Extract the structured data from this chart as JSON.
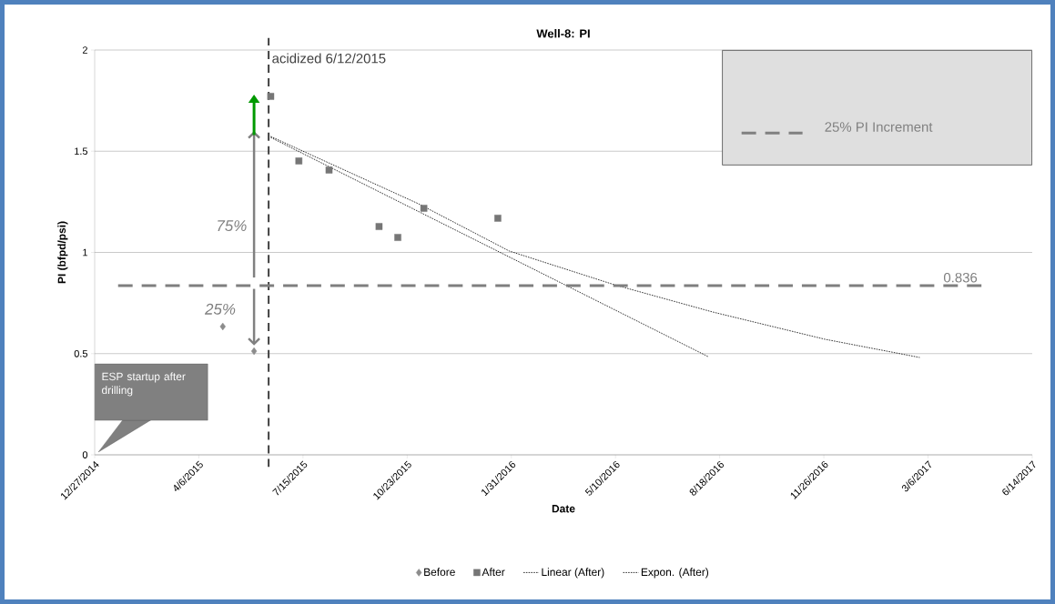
{
  "chart_data": {
    "type": "scatter",
    "title": "Well-8: PI",
    "xlabel": "Date",
    "ylabel": "PI (bfpd/psi)",
    "xlim": [
      "2014-12-27",
      "2017-06-14"
    ],
    "xticks": [
      {
        "value": "2014-12-27",
        "label": "12/27/2014"
      },
      {
        "value": "2015-04-06",
        "label": "4/6/2015"
      },
      {
        "value": "2015-07-15",
        "label": "7/15/2015"
      },
      {
        "value": "2015-10-23",
        "label": "10/23/2015"
      },
      {
        "value": "2016-01-31",
        "label": "1/31/2016"
      },
      {
        "value": "2016-05-10",
        "label": "5/10/2016"
      },
      {
        "value": "2016-08-18",
        "label": "8/18/2016"
      },
      {
        "value": "2016-11-26",
        "label": "11/26/2016"
      },
      {
        "value": "2017-03-06",
        "label": "3/6/2017"
      },
      {
        "value": "2017-06-14",
        "label": "6/14/2017"
      }
    ],
    "ylim": [
      0,
      2
    ],
    "yticks": [
      0,
      0.5,
      1,
      1.5,
      2
    ],
    "grid": "y",
    "legend": "bottom",
    "series": [
      {
        "name": "Before",
        "marker": "diamond",
        "color": "#8c8c8c",
        "x": [
          "2015-04-29",
          "2015-05-29"
        ],
        "values": [
          0.634,
          0.512
        ]
      },
      {
        "name": "After",
        "marker": "square",
        "color": "#767676",
        "x": [
          "2015-06-14",
          "2015-07-11",
          "2015-08-09",
          "2015-09-26",
          "2015-10-14",
          "2015-11-08",
          "2016-01-18"
        ],
        "values": [
          1.771,
          1.452,
          1.407,
          1.128,
          1.074,
          1.218,
          1.169
        ]
      },
      {
        "name": "Linear (After)",
        "type": "line",
        "line_style": "dotted",
        "color": "#000000",
        "x": [
          "2015-06-14",
          "2016-08-07"
        ],
        "values": [
          1.568,
          0.485
        ]
      },
      {
        "name": "Expon. (After)",
        "type": "line",
        "line_style": "dotted",
        "color": "#000000",
        "x": [
          "2015-06-14",
          "2015-11-03",
          "2016-01-29",
          "2016-05-09",
          "2016-08-11",
          "2016-11-27",
          "2017-02-26"
        ],
        "values": [
          1.573,
          1.24,
          1.007,
          0.84,
          0.706,
          0.571,
          0.481
        ]
      }
    ],
    "ref_lines": [
      {
        "axis": "x",
        "value": "2015-06-12",
        "label": "acidized 6/12/2015",
        "color": "#404040",
        "line_style": "dashed"
      },
      {
        "axis": "y",
        "value": 0.836,
        "label": "0.836",
        "color": "#7f7f7f",
        "line_style": "dashed"
      }
    ],
    "annotations": [
      "75%",
      "25%",
      "ESP startup after drilling",
      "25% PI Increment"
    ]
  }
}
